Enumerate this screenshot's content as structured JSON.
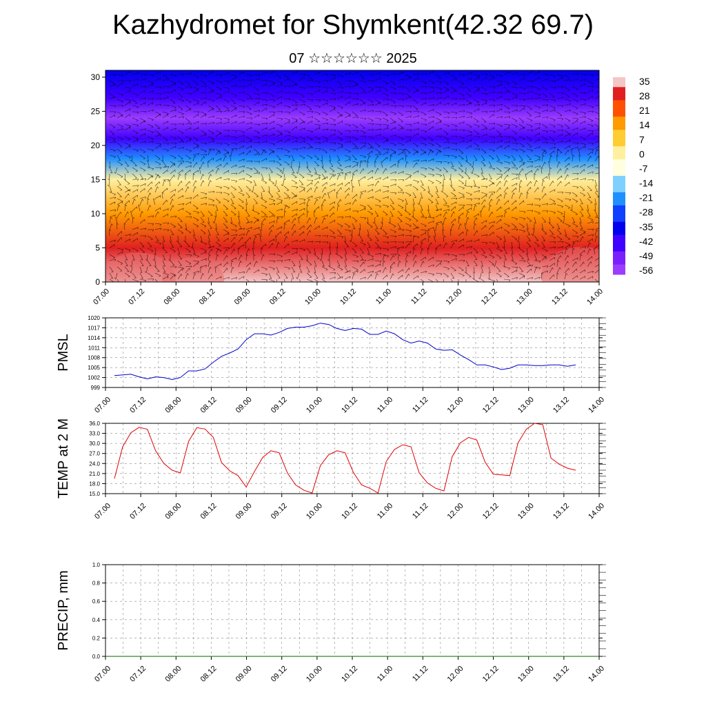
{
  "title": "Kazhydromet for Shymkent(42.32 69.7)",
  "subtitle": "07 ☆☆☆☆☆☆ 2025",
  "colors": {
    "pmsl_line": "#0000cc",
    "temp_line": "#e00000",
    "precip_line": "#006600",
    "grid": "#888888",
    "wind_barbs": "#000000"
  },
  "chart_data": [
    {
      "id": "upper",
      "type": "heatmap",
      "description_kind": "filled contour with wind barbs",
      "title": "",
      "xlabel": "",
      "ylabel": "",
      "x_tick_labels": [
        "07.00",
        "07.12",
        "08.00",
        "08.12",
        "09.00",
        "09.12",
        "10.00",
        "10.12",
        "11.00",
        "11.12",
        "12.00",
        "12.12",
        "13.00",
        "13.12",
        "14.00"
      ],
      "y_ticks": [
        0,
        5,
        10,
        15,
        20,
        25,
        30
      ],
      "ylim": [
        0,
        31
      ],
      "colorbar_labels": [
        "35",
        "28",
        "21",
        "14",
        "7",
        "0",
        "-7",
        "-14",
        "-21",
        "-28",
        "-35",
        "-42",
        "-49",
        "-56"
      ],
      "colorbar_colors": [
        "#f4c6c6",
        "#e02020",
        "#ff5000",
        "#ff9a00",
        "#ffcc33",
        "#fff0a0",
        "#ffffe0",
        "#80d0ff",
        "#2090ff",
        "#1040ff",
        "#0000ee",
        "#4000ff",
        "#7a20ff",
        "#9b3cff"
      ],
      "vertical_profile": [
        {
          "level": 0,
          "value": 33
        },
        {
          "level": 5,
          "value": 26
        },
        {
          "level": 10,
          "value": 14
        },
        {
          "level": 15,
          "value": -2
        },
        {
          "level": 18,
          "value": -18
        },
        {
          "level": 21,
          "value": -40
        },
        {
          "level": 24,
          "value": -56
        },
        {
          "level": 27,
          "value": -45
        },
        {
          "level": 31,
          "value": -38
        }
      ]
    },
    {
      "id": "pmsl",
      "type": "line",
      "ylabel": "PMSL",
      "ylim": [
        999,
        1020
      ],
      "y_ticks": [
        999,
        1002,
        1005,
        1008,
        1011,
        1014,
        1017,
        1020
      ],
      "x_tick_labels": [
        "07.00",
        "07.12",
        "08.00",
        "08.12",
        "09.00",
        "09.12",
        "10.00",
        "10.12",
        "11.00",
        "11.12",
        "12.00",
        "12.12",
        "13.00",
        "13.12",
        "14.00"
      ],
      "x": [
        0,
        3,
        6,
        9,
        12,
        15,
        18,
        21,
        24,
        27,
        30,
        33,
        36,
        39,
        42,
        45,
        48,
        51,
        54,
        57,
        60,
        63,
        66,
        69,
        72,
        75,
        78,
        81,
        84,
        87,
        90,
        93,
        96,
        99,
        102,
        105,
        108,
        111,
        114,
        117,
        120,
        123,
        126,
        129,
        132,
        135,
        138,
        141,
        144,
        147,
        150,
        153,
        156,
        159,
        162,
        165,
        168
      ],
      "series": [
        {
          "name": "",
          "values": [
            1002.6,
            1002.8,
            1003.0,
            1002.2,
            1001.6,
            1002.2,
            1002.0,
            1001.4,
            1002.0,
            1004.0,
            1004.0,
            1004.6,
            1006.6,
            1008.4,
            1009.4,
            1010.6,
            1013.4,
            1015.2,
            1015.2,
            1014.8,
            1015.6,
            1016.8,
            1017.2,
            1017.2,
            1017.6,
            1018.4,
            1018.0,
            1016.8,
            1016.2,
            1016.8,
            1016.6,
            1015.0,
            1015.0,
            1016.0,
            1015.2,
            1013.4,
            1012.4,
            1013.0,
            1012.4,
            1010.6,
            1010.2,
            1010.4,
            1008.8,
            1007.4,
            1005.8,
            1005.8,
            1005.2,
            1004.4,
            1004.8,
            1005.8,
            1005.8,
            1005.6,
            1005.6,
            1005.8,
            1005.8,
            1005.4,
            1005.8
          ]
        }
      ]
    },
    {
      "id": "temp",
      "type": "line",
      "ylabel": "TEMP at 2 M",
      "ylim": [
        15,
        36
      ],
      "y_ticks": [
        15.0,
        18.0,
        21.0,
        24.0,
        27.0,
        30.0,
        33.0,
        36.0
      ],
      "y_tick_labels": [
        "15.0",
        "18.0",
        "21.0",
        "24.0",
        "27.0",
        "30.0",
        "33.0",
        "36.0"
      ],
      "x_tick_labels": [
        "07.00",
        "07.12",
        "08.00",
        "08.12",
        "09.00",
        "09.12",
        "10.00",
        "10.12",
        "11.00",
        "11.12",
        "12.00",
        "12.12",
        "13.00",
        "13.12",
        "14.00"
      ],
      "x": [
        0,
        3,
        6,
        9,
        12,
        15,
        18,
        21,
        24,
        27,
        30,
        33,
        36,
        39,
        42,
        45,
        48,
        51,
        54,
        57,
        60,
        63,
        66,
        69,
        72,
        75,
        78,
        81,
        84,
        87,
        90,
        93,
        96,
        99,
        102,
        105,
        108,
        111,
        114,
        117,
        120,
        123,
        126,
        129,
        132,
        135,
        138,
        141,
        144,
        147,
        150,
        153,
        156,
        159,
        162,
        165,
        168
      ],
      "series": [
        {
          "name": "",
          "values": [
            19.5,
            29.0,
            33.2,
            34.8,
            34.2,
            27.8,
            24.0,
            22.0,
            21.2,
            30.6,
            34.7,
            34.3,
            31.8,
            24.3,
            21.8,
            20.4,
            17.0,
            21.6,
            25.8,
            27.8,
            27.2,
            21.2,
            17.6,
            16.0,
            15.2,
            23.4,
            26.6,
            27.8,
            27.2,
            21.4,
            17.6,
            16.6,
            15.2,
            24.6,
            28.2,
            29.6,
            29.0,
            21.2,
            18.2,
            16.6,
            15.8,
            26.0,
            30.2,
            31.8,
            31.0,
            24.4,
            20.8,
            20.6,
            20.4,
            30.2,
            34.2,
            36.0,
            35.6,
            25.6,
            23.8,
            22.6,
            22.0
          ]
        }
      ]
    },
    {
      "id": "precip",
      "type": "line",
      "ylabel": "PRECIP, mm",
      "ylim": [
        0,
        1
      ],
      "y_ticks": [
        0.0,
        0.2,
        0.4,
        0.6,
        0.8,
        1.0
      ],
      "y_tick_labels": [
        "0.0",
        "0.2",
        "0.4",
        "0.6",
        "0.8",
        "1.0"
      ],
      "x_tick_labels": [
        "07.00",
        "07.12",
        "08.00",
        "08.12",
        "09.00",
        "09.12",
        "10.00",
        "10.12",
        "11.00",
        "11.12",
        "12.00",
        "12.12",
        "13.00",
        "13.12",
        "14.00"
      ],
      "x": [
        0,
        168
      ],
      "series": [
        {
          "name": "",
          "values": [
            0,
            0
          ]
        }
      ]
    }
  ]
}
